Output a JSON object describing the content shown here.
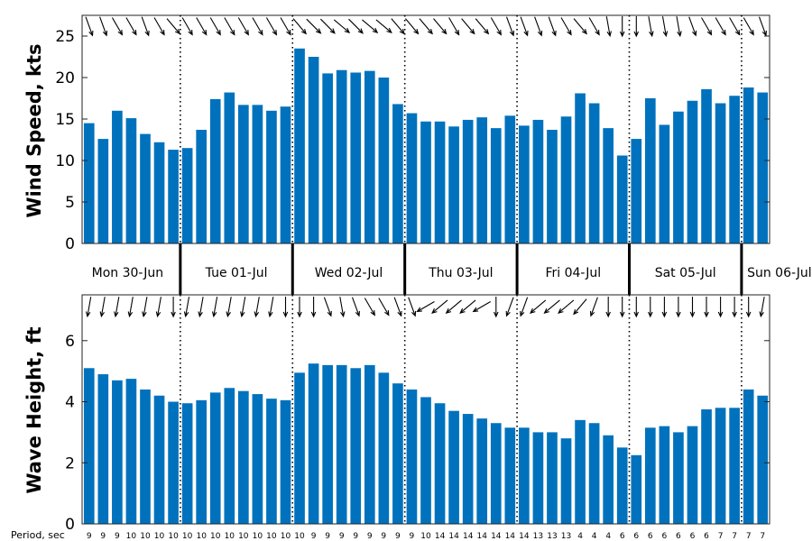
{
  "chart_data": [
    {
      "type": "bar",
      "ylabel": "Wind Speed, kts",
      "ylim": [
        0,
        27.5
      ],
      "yticks": [
        0,
        5,
        10,
        15,
        20,
        25
      ],
      "bar_color": "#0072BD",
      "grid": false,
      "values": [
        14.5,
        12.6,
        16.0,
        15.1,
        13.2,
        12.2,
        11.3,
        11.5,
        13.7,
        17.4,
        18.2,
        16.7,
        16.7,
        16.0,
        16.5,
        23.5,
        22.5,
        20.5,
        20.9,
        20.6,
        20.8,
        20.0,
        16.8,
        15.7,
        14.7,
        14.7,
        14.1,
        14.9,
        15.2,
        13.9,
        15.4,
        14.2,
        14.9,
        13.7,
        15.3,
        18.1,
        16.9,
        13.9,
        10.6,
        12.6,
        17.5,
        14.3,
        15.9,
        17.2,
        18.6,
        16.9,
        17.8,
        18.8,
        18.2
      ],
      "direction_arrows_deg": [
        290,
        290,
        300,
        300,
        290,
        300,
        310,
        300,
        300,
        300,
        300,
        300,
        300,
        300,
        300,
        310,
        315,
        315,
        320,
        315,
        320,
        320,
        310,
        310,
        310,
        310,
        300,
        310,
        310,
        300,
        290,
        290,
        290,
        290,
        300,
        310,
        300,
        280,
        270,
        270,
        280,
        280,
        280,
        290,
        300,
        300,
        300,
        300,
        290
      ]
    },
    {
      "type": "bar",
      "ylabel": "Wave Height, ft",
      "ylim": [
        0,
        7.5
      ],
      "yticks": [
        0,
        2,
        4,
        6
      ],
      "bar_color": "#0072BD",
      "grid": false,
      "values": [
        5.1,
        4.9,
        4.7,
        4.75,
        4.4,
        4.2,
        4.0,
        3.95,
        4.05,
        4.3,
        4.45,
        4.35,
        4.25,
        4.1,
        4.05,
        4.95,
        5.25,
        5.2,
        5.2,
        5.1,
        5.2,
        4.95,
        4.6,
        4.4,
        4.15,
        3.95,
        3.7,
        3.6,
        3.45,
        3.3,
        3.15,
        3.15,
        3.0,
        3.0,
        2.8,
        3.4,
        3.3,
        2.9,
        2.5,
        2.25,
        3.15,
        3.2,
        3.0,
        3.2,
        3.75,
        3.8,
        3.8,
        4.4,
        4.2
      ],
      "direction_arrows_deg": [
        260,
        260,
        260,
        260,
        260,
        260,
        270,
        260,
        260,
        260,
        260,
        260,
        260,
        260,
        270,
        270,
        270,
        290,
        280,
        290,
        300,
        300,
        290,
        290,
        210,
        220,
        220,
        220,
        210,
        270,
        250,
        250,
        220,
        220,
        220,
        230,
        250,
        270,
        270,
        270,
        270,
        270,
        270,
        270,
        270,
        270,
        270,
        270,
        260
      ]
    }
  ],
  "day_labels": [
    "Mon 30-Jun",
    "Tue 01-Jul",
    "Wed 02-Jul",
    "Thu 03-Jul",
    "Fri 04-Jul",
    "Sat 05-Jul",
    "Sun 06-Jul"
  ],
  "period_label": "Period, sec",
  "periods": [
    "9",
    "9",
    "9",
    "10",
    "10",
    "10",
    "10",
    "10",
    "10",
    "10",
    "10",
    "10",
    "10",
    "10",
    "10",
    "10",
    "9",
    "9",
    "9",
    "9",
    "9",
    "9",
    "9",
    "9",
    "10",
    "14",
    "14",
    "14",
    "14",
    "14",
    "14",
    "14",
    "13",
    "13",
    "13",
    "4",
    "4",
    "4",
    "6",
    "6",
    "6",
    "6",
    "6",
    "6",
    "6",
    "7",
    "7",
    "7",
    "7"
  ]
}
